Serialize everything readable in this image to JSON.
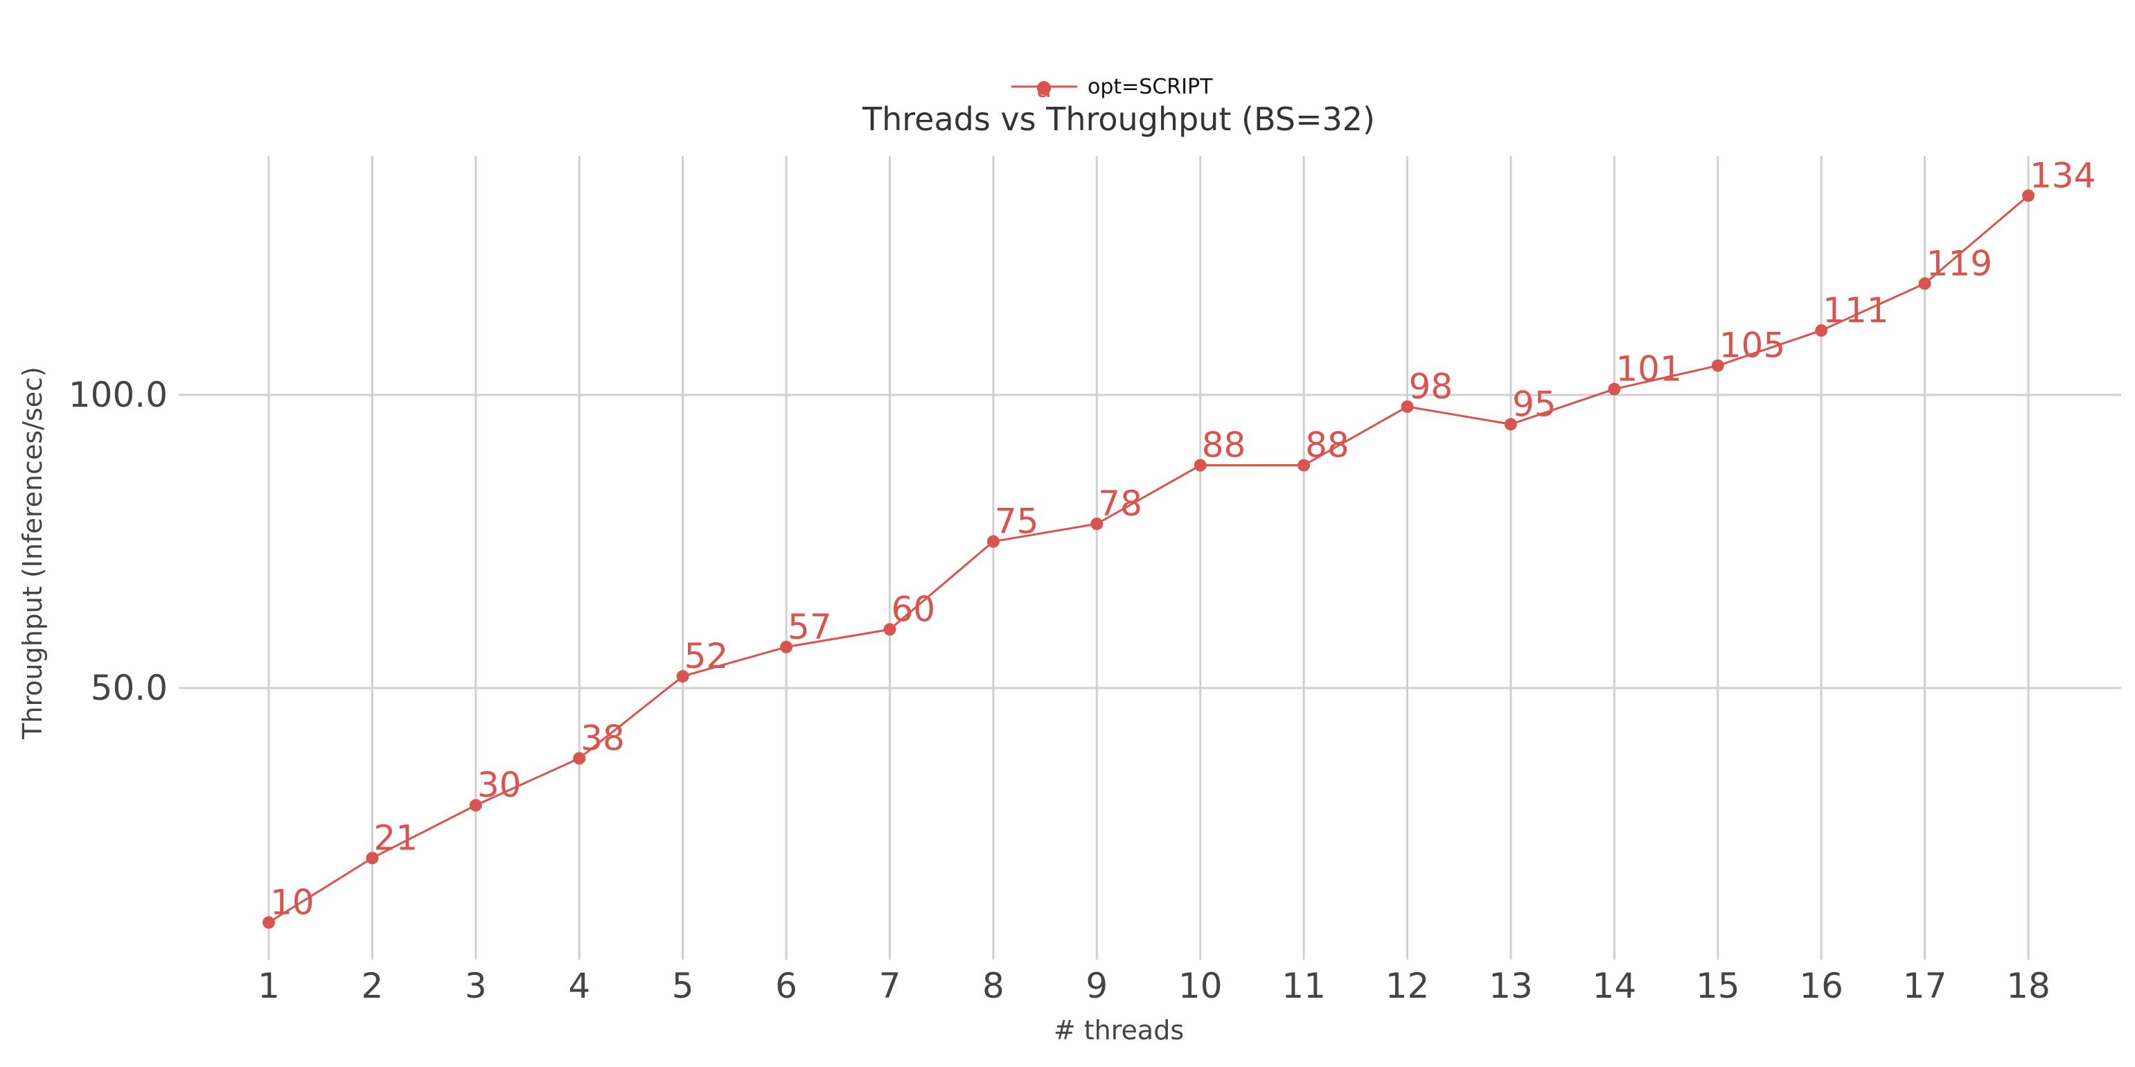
{
  "chart_data": {
    "type": "line",
    "title": "Threads vs Throughput (BS=32)",
    "xlabel": "# threads",
    "ylabel": "Throughput (Inferences/sec)",
    "x": [
      1,
      2,
      3,
      4,
      5,
      6,
      7,
      8,
      9,
      10,
      11,
      12,
      13,
      14,
      15,
      16,
      17,
      18
    ],
    "series": [
      {
        "name": "opt=SCRIPT",
        "color": "#d9534f",
        "values": [
          10,
          21,
          30,
          38,
          52,
          57,
          60,
          75,
          78,
          88,
          88,
          98,
          95,
          101,
          105,
          111,
          119,
          134
        ],
        "labels": [
          "10",
          "21",
          "30",
          "38",
          "52",
          "57",
          "60",
          "75",
          "78",
          "88",
          "88",
          "98",
          "95",
          "101",
          "105",
          "111",
          "119",
          "134"
        ]
      }
    ],
    "legend": {
      "label": "opt=SCRIPT",
      "marker_text": "a",
      "position": "top-center"
    },
    "x_ticks": [
      "1",
      "2",
      "3",
      "4",
      "5",
      "6",
      "7",
      "8",
      "9",
      "10",
      "11",
      "12",
      "13",
      "14",
      "15",
      "16",
      "17",
      "18"
    ],
    "y_ticks": [
      {
        "value": 50,
        "label": "50.0"
      },
      {
        "value": 100,
        "label": "100.0"
      }
    ],
    "xlim": [
      0.5,
      18.5
    ],
    "ylim": [
      6,
      140
    ],
    "grid": true
  }
}
